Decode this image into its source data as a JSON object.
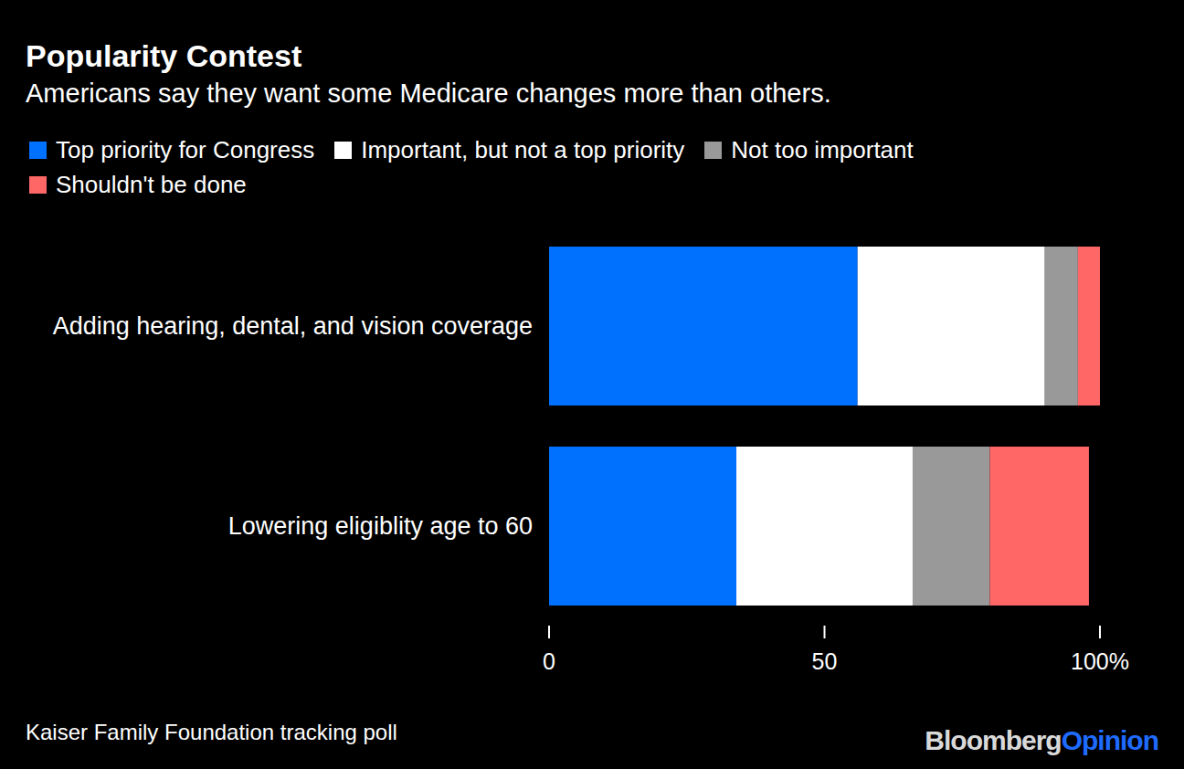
{
  "chart_data": {
    "type": "bar",
    "orientation": "horizontal",
    "stacked": true,
    "grid": false,
    "title": "Popularity Contest",
    "subtitle": "Americans say they want some Medicare changes more than others.",
    "source": "Kaiser Family Foundation tracking poll",
    "credit": [
      "Bloomberg",
      "Opinion"
    ],
    "categories": [
      "Adding hearing, dental, and vision coverage",
      "Lowering eligiblity age to 60"
    ],
    "series": [
      {
        "name": "Top priority for Congress",
        "color": "#0070ff",
        "values": [
          56,
          34
        ]
      },
      {
        "name": "Important, but not a top priority",
        "color": "#ffffff",
        "values": [
          34,
          32
        ]
      },
      {
        "name": "Not too important",
        "color": "#999999",
        "values": [
          6,
          14
        ]
      },
      {
        "name": "Shouldn't be done",
        "color": "#ff6666",
        "values": [
          4,
          18
        ]
      }
    ],
    "xlim": [
      0,
      100
    ],
    "xticks": [
      0,
      50,
      {
        "value": 100,
        "label": "100%"
      }
    ]
  }
}
